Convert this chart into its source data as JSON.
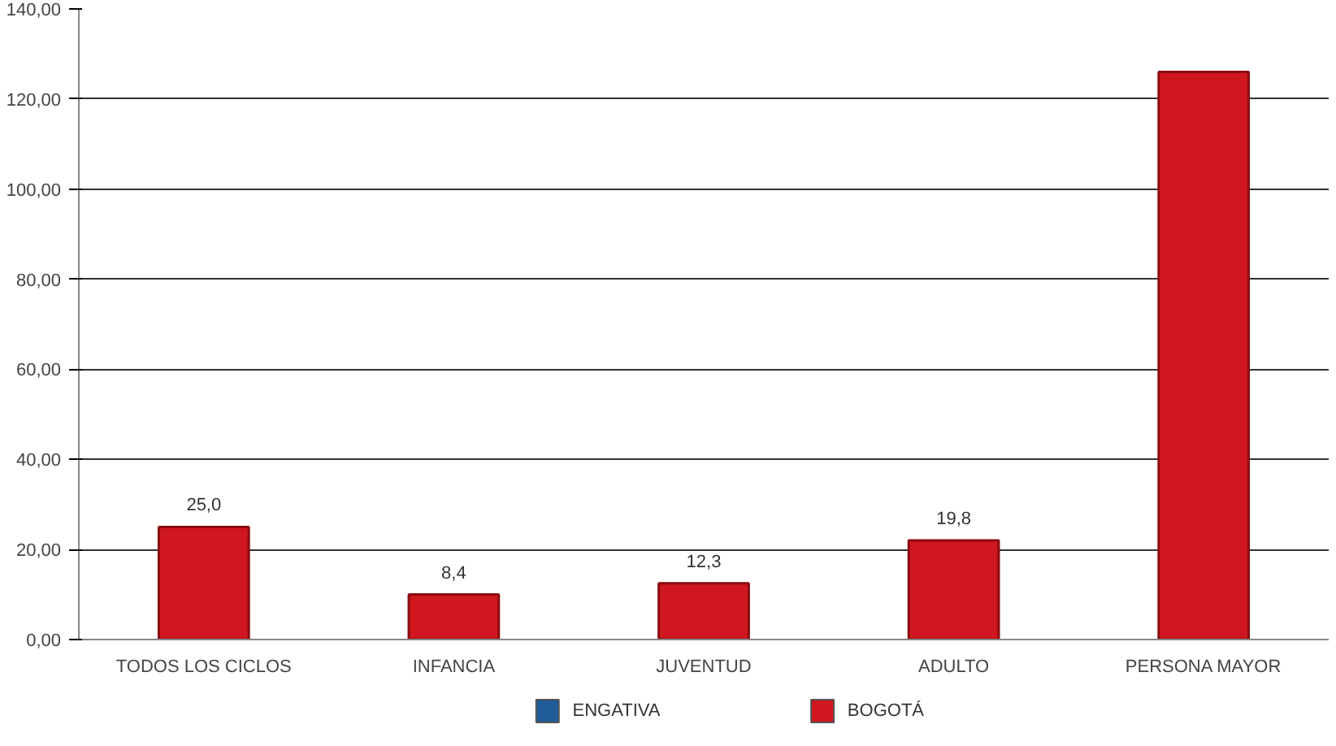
{
  "chart_data": {
    "type": "bar",
    "categories": [
      "TODOS LOS CICLOS",
      "INFANCIA",
      "JUVENTUD",
      "ADULTO",
      "PERSONA MAYOR"
    ],
    "series": [
      {
        "name": "ENGATIVA",
        "color": "#1f5c99",
        "values": [
          null,
          null,
          null,
          null,
          null
        ]
      },
      {
        "name": "BOGOTÁ",
        "color": "#d0161e",
        "values": [
          25,
          10,
          12.5,
          22,
          126
        ]
      }
    ],
    "ylim": [
      0,
      140
    ],
    "yticks": [
      {
        "value": 0,
        "label": "0,00"
      },
      {
        "value": 20,
        "label": "20,00"
      },
      {
        "value": 40,
        "label": "40,00"
      },
      {
        "value": 60,
        "label": "60,00"
      },
      {
        "value": 80,
        "label": "80,00"
      },
      {
        "value": 100,
        "label": "100,00"
      },
      {
        "value": 120,
        "label": "120,00"
      },
      {
        "value": 140,
        "label": "140,00"
      }
    ],
    "annotations": [
      "25,0",
      "8,4",
      "12,3",
      "19,8"
    ],
    "grid": "y",
    "legend": "bottom"
  }
}
